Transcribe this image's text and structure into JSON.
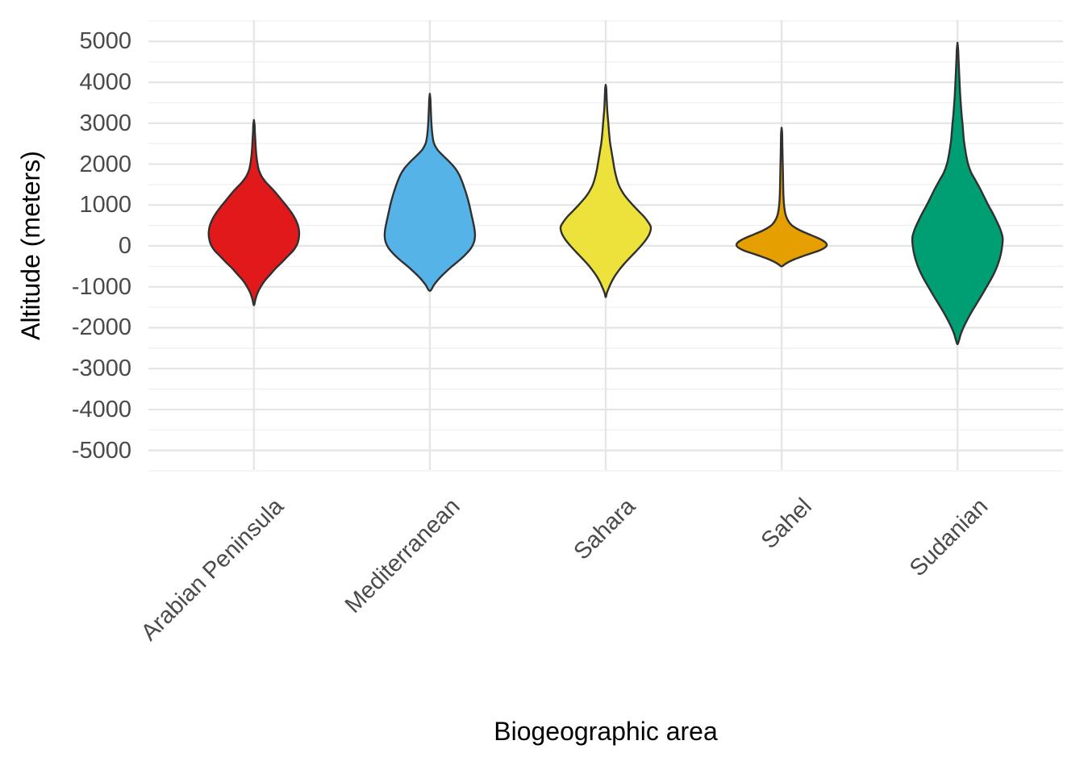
{
  "chart_data": {
    "type": "violin",
    "title": "",
    "xlabel": "Biogeographic area",
    "ylabel": "Altitude (meters)",
    "categories": [
      "Arabian Peninsula",
      "Mediterranean",
      "Sahara",
      "Sahel",
      "Sudanian"
    ],
    "ylim": [
      -5480,
      5520
    ],
    "y_major_ticks": [
      5000,
      4000,
      3000,
      2000,
      1000,
      0,
      -1000,
      -2000,
      -3000,
      -4000,
      -5000
    ],
    "y_major_tick_labels": [
      "5000",
      "4000",
      "3000",
      "2000",
      "1000",
      "0",
      "-1000",
      "-2000",
      "-3000",
      "-4000",
      "-5000"
    ],
    "y_minor_ticks": [
      5500,
      4500,
      3500,
      2500,
      1500,
      500,
      -500,
      -1500,
      -2500,
      -3500,
      -4500,
      -5500
    ],
    "grid": {
      "horizontal_major": true,
      "horizontal_minor": true,
      "vertical_at_categories": true,
      "axis_lines": false
    },
    "legend": false,
    "style": {
      "background": "#FFFFFF",
      "grid_major_color": "#E4E4E4",
      "grid_minor_color": "#EFEFEF",
      "grid_vertical_color": "#E6E6E6",
      "violin_outline_color": "#303030",
      "tick_label_color": "#4A4A4A",
      "axis_title_color": "#000000"
    },
    "series": [
      {
        "name": "Arabian Peninsula",
        "fill": "#E2191B",
        "altitude_range_m": [
          -1450,
          3080
        ],
        "widest_at_m": 300,
        "profile": [
          [
            3080,
            0
          ],
          [
            2950,
            0.015
          ],
          [
            2800,
            0.02
          ],
          [
            2600,
            0.03
          ],
          [
            2400,
            0.04
          ],
          [
            2200,
            0.055
          ],
          [
            2000,
            0.08
          ],
          [
            1850,
            0.11
          ],
          [
            1700,
            0.17
          ],
          [
            1550,
            0.27
          ],
          [
            1400,
            0.4
          ],
          [
            1250,
            0.52
          ],
          [
            1100,
            0.63
          ],
          [
            950,
            0.74
          ],
          [
            800,
            0.84
          ],
          [
            650,
            0.92
          ],
          [
            500,
            0.975
          ],
          [
            350,
            1.0
          ],
          [
            200,
            0.995
          ],
          [
            50,
            0.96
          ],
          [
            -100,
            0.88
          ],
          [
            -250,
            0.75
          ],
          [
            -400,
            0.62
          ],
          [
            -550,
            0.48
          ],
          [
            -700,
            0.36
          ],
          [
            -850,
            0.24
          ],
          [
            -1000,
            0.15
          ],
          [
            -1150,
            0.08
          ],
          [
            -1300,
            0.035
          ],
          [
            -1450,
            0
          ]
        ]
      },
      {
        "name": "Mediterranean",
        "fill": "#56B3E8",
        "altitude_range_m": [
          -1100,
          3720
        ],
        "widest_at_m": 250,
        "profile": [
          [
            3720,
            0
          ],
          [
            3600,
            0.012
          ],
          [
            3450,
            0.018
          ],
          [
            3250,
            0.025
          ],
          [
            3050,
            0.033
          ],
          [
            2850,
            0.045
          ],
          [
            2650,
            0.065
          ],
          [
            2500,
            0.095
          ],
          [
            2350,
            0.17
          ],
          [
            2200,
            0.3
          ],
          [
            2050,
            0.44
          ],
          [
            1900,
            0.56
          ],
          [
            1750,
            0.645
          ],
          [
            1600,
            0.705
          ],
          [
            1450,
            0.755
          ],
          [
            1300,
            0.8
          ],
          [
            1150,
            0.84
          ],
          [
            1000,
            0.875
          ],
          [
            850,
            0.905
          ],
          [
            700,
            0.935
          ],
          [
            550,
            0.965
          ],
          [
            400,
            0.99
          ],
          [
            250,
            1.0
          ],
          [
            100,
            0.98
          ],
          [
            -50,
            0.915
          ],
          [
            -200,
            0.8
          ],
          [
            -350,
            0.655
          ],
          [
            -500,
            0.49
          ],
          [
            -650,
            0.34
          ],
          [
            -800,
            0.205
          ],
          [
            -950,
            0.095
          ],
          [
            -1100,
            0
          ]
        ]
      },
      {
        "name": "Sahara",
        "fill": "#EDE23C",
        "altitude_range_m": [
          -1250,
          3940
        ],
        "widest_at_m": 450,
        "profile": [
          [
            3940,
            0
          ],
          [
            3850,
            0.012
          ],
          [
            3700,
            0.018
          ],
          [
            3500,
            0.025
          ],
          [
            3300,
            0.035
          ],
          [
            3100,
            0.05
          ],
          [
            2900,
            0.065
          ],
          [
            2700,
            0.08
          ],
          [
            2500,
            0.1
          ],
          [
            2300,
            0.13
          ],
          [
            2100,
            0.16
          ],
          [
            1900,
            0.19
          ],
          [
            1700,
            0.23
          ],
          [
            1500,
            0.285
          ],
          [
            1300,
            0.38
          ],
          [
            1150,
            0.48
          ],
          [
            1000,
            0.6
          ],
          [
            850,
            0.73
          ],
          [
            700,
            0.86
          ],
          [
            550,
            0.96
          ],
          [
            450,
            1.0
          ],
          [
            300,
            0.97
          ],
          [
            150,
            0.89
          ],
          [
            0,
            0.78
          ],
          [
            -150,
            0.655
          ],
          [
            -300,
            0.525
          ],
          [
            -450,
            0.4
          ],
          [
            -600,
            0.29
          ],
          [
            -750,
            0.195
          ],
          [
            -900,
            0.12
          ],
          [
            -1050,
            0.06
          ],
          [
            -1150,
            0.025
          ],
          [
            -1250,
            0
          ]
        ]
      },
      {
        "name": "Sahel",
        "fill": "#E69F00",
        "altitude_range_m": [
          -500,
          2890
        ],
        "widest_at_m": 20,
        "profile": [
          [
            2890,
            0
          ],
          [
            2750,
            0.012
          ],
          [
            2500,
            0.016
          ],
          [
            2250,
            0.02
          ],
          [
            2000,
            0.025
          ],
          [
            1750,
            0.03
          ],
          [
            1500,
            0.034
          ],
          [
            1250,
            0.04
          ],
          [
            1050,
            0.05
          ],
          [
            900,
            0.065
          ],
          [
            780,
            0.085
          ],
          [
            680,
            0.115
          ],
          [
            590,
            0.16
          ],
          [
            510,
            0.22
          ],
          [
            440,
            0.31
          ],
          [
            380,
            0.41
          ],
          [
            320,
            0.53
          ],
          [
            260,
            0.66
          ],
          [
            200,
            0.79
          ],
          [
            140,
            0.9
          ],
          [
            80,
            0.975
          ],
          [
            20,
            1.0
          ],
          [
            -40,
            0.96
          ],
          [
            -110,
            0.84
          ],
          [
            -180,
            0.66
          ],
          [
            -250,
            0.47
          ],
          [
            -320,
            0.3
          ],
          [
            -390,
            0.16
          ],
          [
            -450,
            0.07
          ],
          [
            -500,
            0
          ]
        ]
      },
      {
        "name": "Sudanian",
        "fill": "#009E73",
        "altitude_range_m": [
          -2400,
          4970
        ],
        "widest_at_m": 200,
        "profile": [
          [
            4970,
            0
          ],
          [
            4800,
            0.015
          ],
          [
            4600,
            0.022
          ],
          [
            4400,
            0.03
          ],
          [
            4200,
            0.038
          ],
          [
            4000,
            0.046
          ],
          [
            3800,
            0.055
          ],
          [
            3600,
            0.065
          ],
          [
            3400,
            0.078
          ],
          [
            3200,
            0.092
          ],
          [
            3000,
            0.11
          ],
          [
            2800,
            0.125
          ],
          [
            2600,
            0.14
          ],
          [
            2400,
            0.165
          ],
          [
            2200,
            0.195
          ],
          [
            2000,
            0.235
          ],
          [
            1800,
            0.3
          ],
          [
            1600,
            0.4
          ],
          [
            1400,
            0.5
          ],
          [
            1200,
            0.59
          ],
          [
            1000,
            0.68
          ],
          [
            800,
            0.78
          ],
          [
            600,
            0.87
          ],
          [
            400,
            0.95
          ],
          [
            200,
            1.0
          ],
          [
            0,
            0.99
          ],
          [
            -200,
            0.96
          ],
          [
            -400,
            0.91
          ],
          [
            -600,
            0.84
          ],
          [
            -800,
            0.75
          ],
          [
            -1000,
            0.645
          ],
          [
            -1200,
            0.54
          ],
          [
            -1400,
            0.43
          ],
          [
            -1600,
            0.32
          ],
          [
            -1800,
            0.22
          ],
          [
            -2000,
            0.13
          ],
          [
            -2150,
            0.075
          ],
          [
            -2300,
            0.035
          ],
          [
            -2400,
            0
          ]
        ]
      }
    ]
  }
}
